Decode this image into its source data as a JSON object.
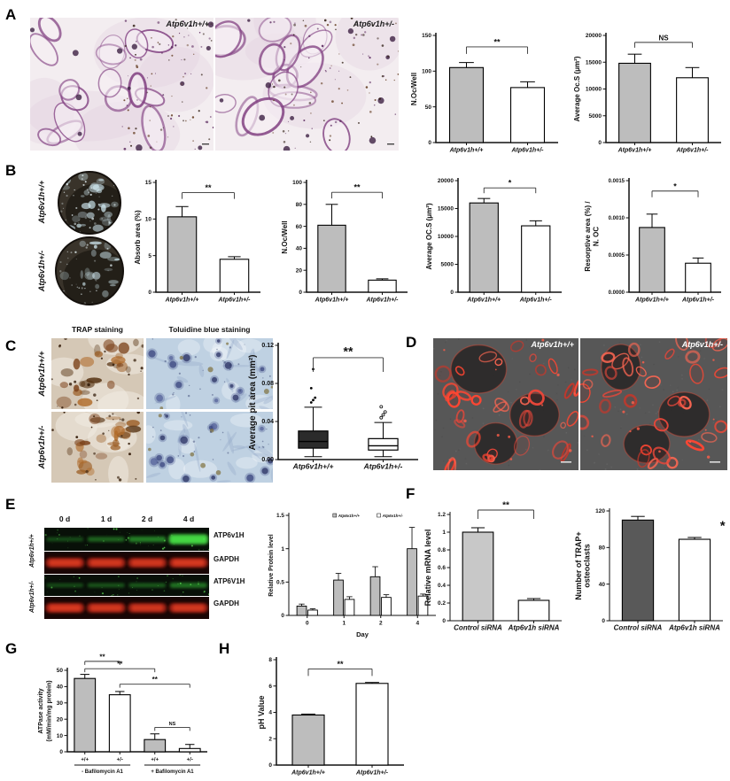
{
  "panels": {
    "a": {
      "letter": "A",
      "image_labels": [
        "Atp6v1h+/+",
        "Atp6v1h+/-"
      ]
    },
    "b": {
      "letter": "B",
      "dish_labels": [
        "Atp6v1h+/+",
        "Atp6v1h+/-"
      ]
    },
    "c": {
      "letter": "C",
      "column_headers": [
        "TRAP staining",
        "Toluidine blue staining"
      ],
      "row_labels": [
        "Atp6v1h+/+",
        "Atp6v1h+/-"
      ]
    },
    "d": {
      "letter": "D",
      "image_labels": [
        "Atp6v1h+/+",
        "Atp6v1h+/-"
      ]
    },
    "e": {
      "letter": "E",
      "lane_headers": [
        "0 d",
        "1 d",
        "2 d",
        "4 d"
      ],
      "row_labels": [
        "Atp6v1h+/+",
        "Atp6v1h+/-"
      ],
      "band_labels": [
        "ATP6v1H",
        "GAPDH",
        "ATP6V1H",
        "GAPDH"
      ]
    },
    "f": {
      "letter": "F"
    },
    "g": {
      "letter": "G"
    },
    "h": {
      "letter": "H"
    }
  },
  "colors": {
    "bar_gray": "#bdbdbd",
    "bar_dark_gray": "#595959",
    "bar_white": "#ffffff",
    "blot_green": "#38c93a",
    "blot_red": "#c22a16",
    "actin_red": "#e8473a"
  },
  "chart_data": {
    "a_noc": {
      "type": "bar",
      "ylabel": "N.Oc/Well",
      "ylim": [
        0,
        150
      ],
      "yticks": [
        0,
        50,
        100,
        150
      ],
      "ytick_labels": [
        "0",
        "50",
        "100",
        "150"
      ],
      "categories": [
        "Atp6v1h+/+",
        "Atp6v1h+/-"
      ],
      "values": [
        105,
        77
      ],
      "errors": [
        7,
        8
      ],
      "fills": [
        "#bdbdbd",
        "#ffffff"
      ],
      "axis_w": 1.5,
      "sig": [
        {
          "from": 0,
          "to": 1,
          "label": "**",
          "y": 134,
          "size": 9,
          "drop": 8
        }
      ]
    },
    "a_ocs": {
      "type": "bar",
      "ylabel": "Average Oc.S (μm²)",
      "ylim": [
        0,
        20000
      ],
      "yticks": [
        0,
        5000,
        10000,
        15000,
        20000
      ],
      "ytick_labels": [
        "0",
        "5000",
        "10000",
        "15000",
        "20000"
      ],
      "categories": [
        "Atp6v1h+/+",
        "Atp6v1h+/-"
      ],
      "values": [
        14800,
        12100
      ],
      "errors": [
        1700,
        1900
      ],
      "fills": [
        "#bdbdbd",
        "#ffffff"
      ],
      "axis_w": 1.5,
      "sig": [
        {
          "from": 0,
          "to": 1,
          "label": "NS",
          "y": 18700,
          "size": 8,
          "drop": 6
        }
      ]
    },
    "b_absorb": {
      "type": "bar",
      "ylabel": "Absorb area (%)",
      "ylim": [
        0,
        15
      ],
      "yticks": [
        0,
        5,
        10,
        15
      ],
      "ytick_labels": [
        "0",
        "5",
        "10",
        "15"
      ],
      "categories": [
        "Atp6v1h+/+",
        "Atp6v1h+/-"
      ],
      "values": [
        10.3,
        4.5
      ],
      "errors": [
        1.4,
        0.35
      ],
      "fills": [
        "#bdbdbd",
        "#ffffff"
      ],
      "axis_w": 1.5,
      "sig": [
        {
          "from": 0,
          "to": 1,
          "label": "**",
          "y": 13.6,
          "size": 9,
          "drop": 7
        }
      ]
    },
    "b_noc": {
      "type": "bar",
      "ylabel": "N.Oc/Well",
      "ylim": [
        0,
        100
      ],
      "yticks": [
        0,
        20,
        40,
        60,
        80,
        100
      ],
      "ytick_labels": [
        "0",
        "20",
        "40",
        "60",
        "80",
        "100"
      ],
      "categories": [
        "Atp6v1h+/+",
        "Atp6v1h+/-"
      ],
      "values": [
        61,
        11
      ],
      "errors": [
        19,
        1.2
      ],
      "fills": [
        "#bdbdbd",
        "#ffffff"
      ],
      "axis_w": 1.5,
      "sig": [
        {
          "from": 0,
          "to": 1,
          "label": "**",
          "y": 91,
          "size": 9,
          "drop": 7
        }
      ]
    },
    "b_ocs": {
      "type": "bar",
      "ylabel": "Average OC.S (μm²)",
      "ylim": [
        0,
        20000
      ],
      "yticks": [
        0,
        5000,
        10000,
        15000,
        20000
      ],
      "ytick_labels": [
        "0",
        "5000",
        "10000",
        "15000",
        "20000"
      ],
      "categories": [
        "Atp6v1h+/+",
        "Atp6v1h+/-"
      ],
      "values": [
        16000,
        11900
      ],
      "errors": [
        800,
        900
      ],
      "fills": [
        "#bdbdbd",
        "#ffffff"
      ],
      "axis_w": 1.5,
      "sig": [
        {
          "from": 0,
          "to": 1,
          "label": "*",
          "y": 18700,
          "size": 9,
          "drop": 6
        }
      ]
    },
    "b_resorb": {
      "type": "bar",
      "ylabel": "Resorptive area (%) /\nN. OC",
      "ylim": [
        0,
        0.0015
      ],
      "yticks": [
        0,
        0.0005,
        0.001,
        0.0015
      ],
      "ytick_labels": [
        "0.0000",
        "0.0005",
        "0.0010",
        "0.0015"
      ],
      "ytick_size": 6,
      "categories": [
        "Atp6v1h+/+",
        "Atp6v1h+/-"
      ],
      "values": [
        0.00087,
        0.00039
      ],
      "errors": [
        0.00018,
        7e-05
      ],
      "fills": [
        "#bdbdbd",
        "#ffffff"
      ],
      "axis_w": 1.5,
      "sig": [
        {
          "from": 0,
          "to": 1,
          "label": "*",
          "y": 0.00136,
          "size": 9,
          "drop": 7
        }
      ]
    },
    "c_pit": {
      "type": "box",
      "ylabel": "Average pit area (mm²)",
      "ylabel_size": 10,
      "ylim": [
        0,
        0.12
      ],
      "yticks": [
        0,
        0.04,
        0.08,
        0.12
      ],
      "ytick_labels": [
        "0.00",
        "0.04",
        "0.08",
        "0.12"
      ],
      "ytick_size": 7,
      "xtick_size": 8.5,
      "categories": [
        "Atp6v1h+/+",
        "Atp6v1h+/-"
      ],
      "axis_w": 1.6,
      "boxes": [
        {
          "lo": 0.003,
          "q1": 0.012,
          "median": 0.019,
          "q3": 0.03,
          "hi": 0.055,
          "fill": "#2b2b2b",
          "outlier_style": "filled",
          "outliers": [
            0.06,
            0.0625,
            0.065,
            0.075,
            0.095
          ]
        },
        {
          "lo": 0.003,
          "q1": 0.01,
          "median": 0.0145,
          "q3": 0.022,
          "hi": 0.039,
          "fill": "#ffffff",
          "outlier_style": "open",
          "outliers": [
            0.044,
            0.047,
            0.05,
            0.0555
          ]
        }
      ],
      "sig": [
        {
          "from": 0,
          "to": 1,
          "label": "**",
          "y": 0.107,
          "size": 14,
          "drop": 16
        }
      ]
    },
    "e_protein": {
      "type": "grouped-bar",
      "ylabel": "Relative Protein level",
      "ylabel_size": 7,
      "xlabel": "Day",
      "ylim": [
        0,
        1.5
      ],
      "yticks": [
        0,
        0.5,
        1,
        1.5
      ],
      "ytick_labels": [
        "0",
        "0.5",
        "1",
        "1.5"
      ],
      "categories": [
        "0",
        "1",
        "2",
        "4"
      ],
      "xtick_italic": false,
      "xtick_size": 6.5,
      "ml": 26,
      "mt": 16,
      "mb": 27,
      "axis_w": 1,
      "series": [
        {
          "name": "Atp6v1h+/+",
          "fill": "#bdbdbd",
          "values": [
            0.14,
            0.53,
            0.58,
            1.0
          ],
          "errors": [
            0.03,
            0.1,
            0.15,
            0.32
          ]
        },
        {
          "name": "Atp6v1h+/-",
          "fill": "#ffffff",
          "values": [
            0.08,
            0.24,
            0.27,
            0.29
          ],
          "errors": [
            0.02,
            0.04,
            0.04,
            0.03
          ]
        }
      ]
    },
    "f_mrna": {
      "type": "bar",
      "ylabel": "Relative mRNA level",
      "ylabel_size": 9,
      "ylim": [
        0,
        1.2
      ],
      "yticks": [
        0,
        0.2,
        0.4,
        0.6,
        0.8,
        1,
        1.2
      ],
      "ytick_labels": [
        "0",
        "0.2",
        "0.4",
        "0.6",
        "0.8",
        "1",
        "1.2"
      ],
      "categories": [
        "Control siRNA",
        "Atp6v1h siRNA"
      ],
      "xtick_size": 8,
      "values": [
        1.0,
        0.23
      ],
      "errors": [
        0.05,
        0.02
      ],
      "fills": [
        "#c8c8c8",
        "#ffffff"
      ],
      "mt": 18,
      "mb": 24,
      "axis_w": 1,
      "sig": [
        {
          "from": 0,
          "to": 1,
          "label": "**",
          "y": 1.25,
          "size": 10,
          "drop": 10
        }
      ]
    },
    "f_trap": {
      "type": "bar",
      "ylabel": "Number of TRAP+\nosteoclasts",
      "ylabel_size": 9,
      "ylim": [
        0,
        120
      ],
      "yticks": [
        0,
        40,
        80,
        120
      ],
      "ytick_labels": [
        "0",
        "40",
        "80",
        "120"
      ],
      "categories": [
        "Control siRNA",
        "Atp6v1h siRNA"
      ],
      "xtick_size": 8,
      "values": [
        110,
        89
      ],
      "errors": [
        4,
        2
      ],
      "fills": [
        "#595959",
        "#ffffff"
      ],
      "mb": 24,
      "axis_w": 1,
      "sig": [
        {
          "at": 1,
          "label": "*",
          "y": 99,
          "size": 15
        }
      ]
    },
    "g_atpase": {
      "type": "bar",
      "ylabel": "ATPase activity\n(mM/min/mg protein)",
      "ylabel_size": 7,
      "ylim": [
        0,
        50
      ],
      "yticks": [
        0,
        10,
        20,
        30,
        40,
        50
      ],
      "ytick_labels": [
        "0",
        "10",
        "20",
        "30",
        "40",
        "50"
      ],
      "categories": [
        "+/+",
        "+/-",
        "+/+",
        "+/-"
      ],
      "xtick_italic": false,
      "xtick_size": 6,
      "values": [
        45,
        35,
        7.5,
        2
      ],
      "errors": [
        2.5,
        2,
        3.5,
        2.5
      ],
      "fills": [
        "#bdbdbd",
        "#ffffff",
        "#bdbdbd",
        "#ffffff"
      ],
      "mt": 26,
      "bar_frac": 0.6,
      "axis_w": 1.4,
      "groups": [
        {
          "label": "- Bafilomycin A1",
          "from": 0,
          "to": 1
        },
        {
          "label": "+ Bafilomycin A1",
          "from": 2,
          "to": 3
        }
      ],
      "sig": [
        {
          "from": 0,
          "to": 1,
          "label": "**",
          "y": 55.5,
          "size": 8,
          "drop": 4
        },
        {
          "from": 0,
          "to": 2,
          "label": "**",
          "y": 51,
          "size": 8,
          "drop": 4
        },
        {
          "from": 1,
          "to": 3,
          "label": "**",
          "y": 41.5,
          "size": 8,
          "drop": 4
        },
        {
          "from": 2,
          "to": 3,
          "label": "NS",
          "y": 15,
          "size": 5.5,
          "drop": 4
        }
      ]
    },
    "h_ph": {
      "type": "bar",
      "ylabel": "pH Value",
      "ylabel_size": 9,
      "ylim": [
        0,
        8
      ],
      "yticks": [
        0,
        2,
        4,
        6,
        8
      ],
      "ytick_labels": [
        "0",
        "2",
        "4",
        "6",
        "8"
      ],
      "categories": [
        "Atp6v1h+/+",
        "Atp6v1h+/-"
      ],
      "xtick_size": 7,
      "values": [
        3.8,
        6.2
      ],
      "errors": [
        0.07,
        0.07
      ],
      "fills": [
        "#bdbdbd",
        "#ffffff"
      ],
      "axis_w": 1.5,
      "bar_frac": 0.5,
      "sig": [
        {
          "from": 0,
          "to": 1,
          "label": "**",
          "y": 7.3,
          "size": 9,
          "drop": 8
        }
      ]
    }
  }
}
